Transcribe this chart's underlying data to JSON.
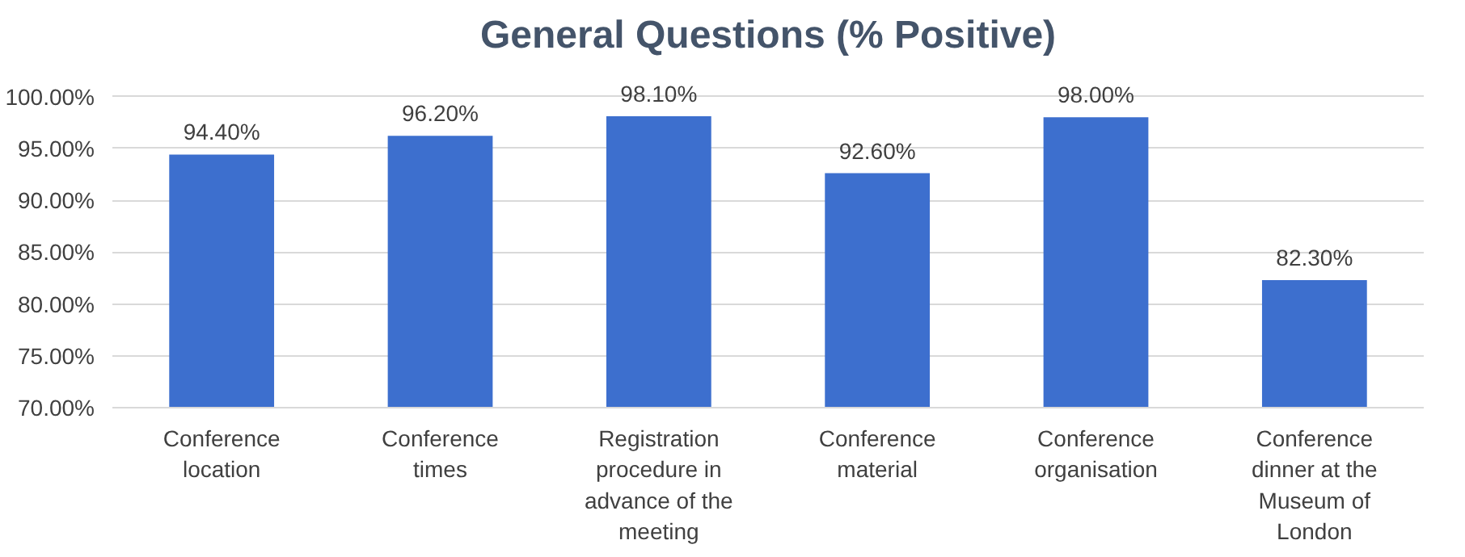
{
  "chart_data": {
    "type": "bar",
    "title": "General Questions (% Positive)",
    "categories": [
      "Conference location",
      "Conference times",
      "Registration procedure in advance of the meeting",
      "Conference material",
      "Conference organisation",
      "Conference dinner at the Museum of London"
    ],
    "values": [
      94.4,
      96.2,
      98.1,
      92.6,
      98.0,
      82.3
    ],
    "value_labels": [
      "94.40%",
      "96.20%",
      "98.10%",
      "92.60%",
      "98.00%",
      "82.30%"
    ],
    "color": "#3d6fce",
    "ylim": [
      70,
      100
    ],
    "yticks": [
      {
        "value": 70,
        "label": "70.00%"
      },
      {
        "value": 75,
        "label": "75.00%"
      },
      {
        "value": 80,
        "label": "80.00%"
      },
      {
        "value": 85,
        "label": "85.00%"
      },
      {
        "value": 90,
        "label": "90.00%"
      },
      {
        "value": 95,
        "label": "95.00%"
      },
      {
        "value": 100,
        "label": "100.00%"
      }
    ],
    "grid": "y"
  }
}
